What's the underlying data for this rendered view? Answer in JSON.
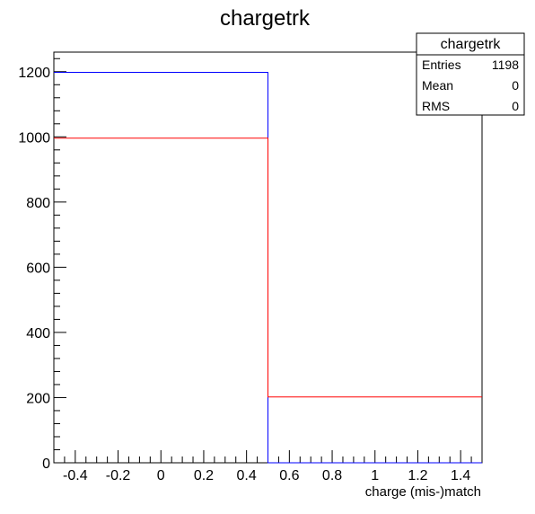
{
  "chart_data": {
    "type": "histogram",
    "title": "chargetrk",
    "xlabel": "charge (mis-)match",
    "ylabel": "",
    "xlim": [
      -0.5,
      1.5
    ],
    "ylim": [
      0,
      1260
    ],
    "x_ticks": [
      -0.4,
      -0.2,
      0,
      0.2,
      0.4,
      0.6,
      0.8,
      1,
      1.2,
      1.4
    ],
    "x_tick_labels": [
      "-0.4",
      "-0.2",
      "0",
      "0.2",
      "0.4",
      "0.6",
      "0.8",
      "1",
      "1.2",
      "1.4"
    ],
    "y_ticks": [
      0,
      200,
      400,
      600,
      800,
      1000,
      1200
    ],
    "y_tick_labels": [
      "0",
      "200",
      "400",
      "600",
      "800",
      "1000",
      "1200"
    ],
    "bin_edges": [
      -0.5,
      0.5,
      1.5
    ],
    "series": [
      {
        "color": "#0000ff",
        "values": [
          1198,
          0
        ]
      },
      {
        "color": "#ff0000",
        "values": [
          996,
          202
        ]
      }
    ],
    "grid": false,
    "stats_box": {
      "title": "chargetrk",
      "placement": "top-right",
      "rows": [
        {
          "label": "Entries",
          "value": "1198"
        },
        {
          "label": "Mean",
          "value": "0"
        },
        {
          "label": "RMS",
          "value": "0"
        }
      ]
    }
  }
}
